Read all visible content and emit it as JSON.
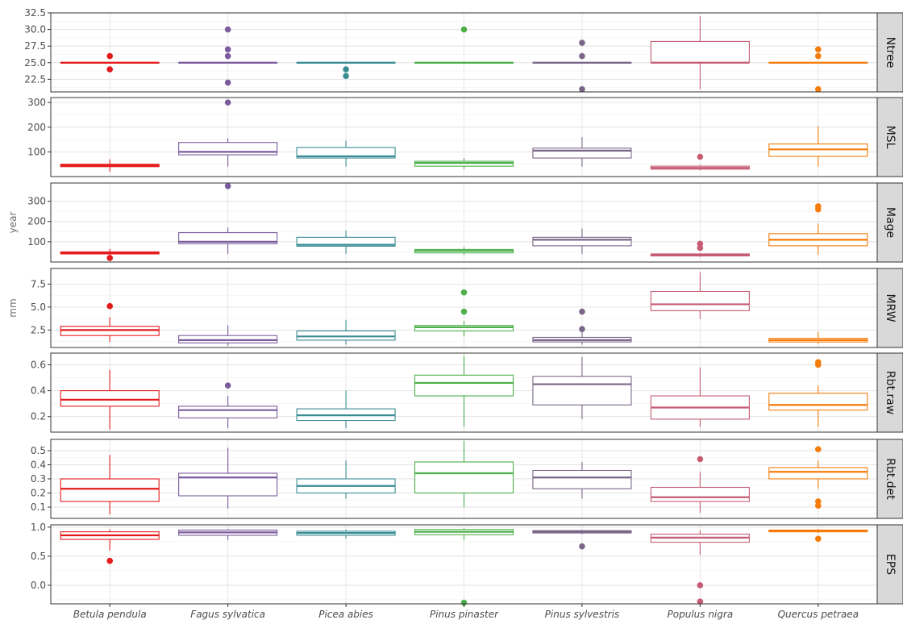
{
  "chart_data": {
    "type": "boxplot",
    "layout": "faceted-rows",
    "grid": true,
    "legend": "none",
    "species": [
      "Betula pendula",
      "Fagus sylvatica",
      "Picea abies",
      "Pinus pinaster",
      "Pinus sylvestris",
      "Populus nigra",
      "Quercus petraea"
    ],
    "colors": [
      "#e41a1c",
      "#7a5c9c",
      "#3a8c94",
      "#4daf4a",
      "#7a6688",
      "#c65b74",
      "#f57c0b"
    ],
    "panels": [
      {
        "name": "Ntree",
        "ylabel": "",
        "ylim": [
          20.6,
          32.5
        ],
        "ticks": [
          22.5,
          25.0,
          27.5,
          30.0,
          32.5
        ],
        "tick_labels": [
          "22.5",
          "25.0",
          "27.5",
          "30.0",
          "32.5"
        ],
        "boxes": [
          {
            "species": "Betula pendula",
            "q1": 25,
            "median": 25,
            "q3": 25,
            "whisker_low": 25,
            "whisker_high": 25,
            "outliers": [
              26,
              24
            ]
          },
          {
            "species": "Fagus sylvatica",
            "q1": 25,
            "median": 25,
            "q3": 25,
            "whisker_low": 25,
            "whisker_high": 25,
            "outliers": [
              30,
              27,
              26,
              22
            ]
          },
          {
            "species": "Picea abies",
            "q1": 25,
            "median": 25,
            "q3": 25,
            "whisker_low": 25,
            "whisker_high": 25,
            "outliers": [
              24,
              23
            ]
          },
          {
            "species": "Pinus pinaster",
            "q1": 25,
            "median": 25,
            "q3": 25,
            "whisker_low": 25,
            "whisker_high": 25,
            "outliers": [
              30
            ]
          },
          {
            "species": "Pinus sylvestris",
            "q1": 25,
            "median": 25,
            "q3": 25,
            "whisker_low": 25,
            "whisker_high": 25,
            "outliers": [
              28,
              26,
              21
            ]
          },
          {
            "species": "Populus nigra",
            "q1": 25,
            "median": 25,
            "q3": 28.2,
            "whisker_low": 21,
            "whisker_high": 32,
            "outliers": []
          },
          {
            "species": "Quercus petraea",
            "q1": 25,
            "median": 25,
            "q3": 25,
            "whisker_low": 25,
            "whisker_high": 25,
            "outliers": [
              27,
              26,
              21
            ]
          }
        ]
      },
      {
        "name": "MSL",
        "ylabel": "",
        "ylim": [
          0,
          320
        ],
        "ticks": [
          100,
          200,
          300
        ],
        "tick_labels": [
          "100",
          "200",
          "300"
        ],
        "boxes": [
          {
            "species": "Betula pendula",
            "q1": 40,
            "median": 45,
            "q3": 50,
            "whisker_low": 20,
            "whisker_high": 70,
            "outliers": []
          },
          {
            "species": "Fagus sylvatica",
            "q1": 88,
            "median": 100,
            "q3": 138,
            "whisker_low": 40,
            "whisker_high": 155,
            "outliers": [
              300
            ]
          },
          {
            "species": "Picea abies",
            "q1": 75,
            "median": 82,
            "q3": 118,
            "whisker_low": 40,
            "whisker_high": 145,
            "outliers": []
          },
          {
            "species": "Pinus pinaster",
            "q1": 42,
            "median": 55,
            "q3": 62,
            "whisker_low": 30,
            "whisker_high": 75,
            "outliers": []
          },
          {
            "species": "Pinus sylvestris",
            "q1": 75,
            "median": 105,
            "q3": 115,
            "whisker_low": 40,
            "whisker_high": 160,
            "outliers": []
          },
          {
            "species": "Populus nigra",
            "q1": 30,
            "median": 35,
            "q3": 42,
            "whisker_low": 25,
            "whisker_high": 48,
            "outliers": [
              80
            ]
          },
          {
            "species": "Quercus petraea",
            "q1": 82,
            "median": 110,
            "q3": 132,
            "whisker_low": 40,
            "whisker_high": 205,
            "outliers": []
          }
        ]
      },
      {
        "name": "Mage",
        "ylabel": "year",
        "ylim": [
          0,
          390
        ],
        "ticks": [
          100,
          200,
          300
        ],
        "tick_labels": [
          "100",
          "200",
          "300"
        ],
        "boxes": [
          {
            "species": "Betula pendula",
            "q1": 40,
            "median": 45,
            "q3": 50,
            "whisker_low": 35,
            "whisker_high": 65,
            "outliers": [
              20
            ]
          },
          {
            "species": "Fagus sylvatica",
            "q1": 90,
            "median": 100,
            "q3": 145,
            "whisker_low": 40,
            "whisker_high": 170,
            "outliers": [
              375
            ]
          },
          {
            "species": "Picea abies",
            "q1": 78,
            "median": 85,
            "q3": 122,
            "whisker_low": 40,
            "whisker_high": 155,
            "outliers": []
          },
          {
            "species": "Pinus pinaster",
            "q1": 45,
            "median": 55,
            "q3": 62,
            "whisker_low": 35,
            "whisker_high": 75,
            "outliers": []
          },
          {
            "species": "Pinus sylvestris",
            "q1": 80,
            "median": 110,
            "q3": 122,
            "whisker_low": 40,
            "whisker_high": 165,
            "outliers": []
          },
          {
            "species": "Populus nigra",
            "q1": 30,
            "median": 35,
            "q3": 40,
            "whisker_low": 25,
            "whisker_high": 45,
            "outliers": [
              90,
              70
            ]
          },
          {
            "species": "Quercus petraea",
            "q1": 80,
            "median": 110,
            "q3": 140,
            "whisker_low": 35,
            "whisker_high": 190,
            "outliers": [
              275,
              260
            ]
          }
        ]
      },
      {
        "name": "MRW",
        "ylabel": "mm",
        "ylim": [
          0.6,
          9.2
        ],
        "ticks": [
          2.5,
          5.0,
          7.5
        ],
        "tick_labels": [
          "2.5",
          "5.0",
          "7.5"
        ],
        "boxes": [
          {
            "species": "Betula pendula",
            "q1": 1.9,
            "median": 2.5,
            "q3": 2.9,
            "whisker_low": 1.2,
            "whisker_high": 3.9,
            "outliers": [
              5.1
            ]
          },
          {
            "species": "Fagus sylvatica",
            "q1": 1.1,
            "median": 1.4,
            "q3": 1.9,
            "whisker_low": 0.8,
            "whisker_high": 3.0,
            "outliers": []
          },
          {
            "species": "Picea abies",
            "q1": 1.4,
            "median": 1.8,
            "q3": 2.4,
            "whisker_low": 0.9,
            "whisker_high": 3.6,
            "outliers": []
          },
          {
            "species": "Pinus pinaster",
            "q1": 2.4,
            "median": 2.8,
            "q3": 3.0,
            "whisker_low": 1.8,
            "whisker_high": 3.5,
            "outliers": [
              6.6,
              4.5
            ]
          },
          {
            "species": "Pinus sylvestris",
            "q1": 1.2,
            "median": 1.4,
            "q3": 1.7,
            "whisker_low": 0.9,
            "whisker_high": 2.3,
            "outliers": [
              4.5,
              2.6
            ]
          },
          {
            "species": "Populus nigra",
            "q1": 4.6,
            "median": 5.3,
            "q3": 6.7,
            "whisker_low": 3.7,
            "whisker_high": 8.8,
            "outliers": []
          },
          {
            "species": "Quercus petraea",
            "q1": 1.2,
            "median": 1.4,
            "q3": 1.6,
            "whisker_low": 1.0,
            "whisker_high": 2.3,
            "outliers": []
          }
        ]
      },
      {
        "name": "Rbt.raw",
        "ylabel": "",
        "ylim": [
          0.08,
          0.69
        ],
        "ticks": [
          0.2,
          0.4,
          0.6
        ],
        "tick_labels": [
          "0.2",
          "0.4",
          "0.6"
        ],
        "boxes": [
          {
            "species": "Betula pendula",
            "q1": 0.28,
            "median": 0.33,
            "q3": 0.4,
            "whisker_low": 0.1,
            "whisker_high": 0.56,
            "outliers": []
          },
          {
            "species": "Fagus sylvatica",
            "q1": 0.19,
            "median": 0.25,
            "q3": 0.28,
            "whisker_low": 0.11,
            "whisker_high": 0.36,
            "outliers": [
              0.44
            ]
          },
          {
            "species": "Picea abies",
            "q1": 0.17,
            "median": 0.21,
            "q3": 0.26,
            "whisker_low": 0.11,
            "whisker_high": 0.4,
            "outliers": []
          },
          {
            "species": "Pinus pinaster",
            "q1": 0.36,
            "median": 0.46,
            "q3": 0.52,
            "whisker_low": 0.12,
            "whisker_high": 0.67,
            "outliers": []
          },
          {
            "species": "Pinus sylvestris",
            "q1": 0.29,
            "median": 0.45,
            "q3": 0.51,
            "whisker_low": 0.18,
            "whisker_high": 0.66,
            "outliers": []
          },
          {
            "species": "Populus nigra",
            "q1": 0.18,
            "median": 0.27,
            "q3": 0.36,
            "whisker_low": 0.12,
            "whisker_high": 0.58,
            "outliers": []
          },
          {
            "species": "Quercus petraea",
            "q1": 0.25,
            "median": 0.29,
            "q3": 0.38,
            "whisker_low": 0.12,
            "whisker_high": 0.44,
            "outliers": [
              0.62,
              0.6
            ]
          }
        ]
      },
      {
        "name": "Rbt.det",
        "ylabel": "",
        "ylim": [
          0.02,
          0.58
        ],
        "ticks": [
          0.1,
          0.2,
          0.3,
          0.4,
          0.5
        ],
        "tick_labels": [
          "0.1",
          "0.2",
          "0.3",
          "0.4",
          "0.5"
        ],
        "boxes": [
          {
            "species": "Betula pendula",
            "q1": 0.14,
            "median": 0.23,
            "q3": 0.3,
            "whisker_low": 0.05,
            "whisker_high": 0.47,
            "outliers": []
          },
          {
            "species": "Fagus sylvatica",
            "q1": 0.18,
            "median": 0.31,
            "q3": 0.34,
            "whisker_low": 0.09,
            "whisker_high": 0.52,
            "outliers": []
          },
          {
            "species": "Picea abies",
            "q1": 0.2,
            "median": 0.25,
            "q3": 0.3,
            "whisker_low": 0.16,
            "whisker_high": 0.43,
            "outliers": []
          },
          {
            "species": "Pinus pinaster",
            "q1": 0.2,
            "median": 0.34,
            "q3": 0.42,
            "whisker_low": 0.1,
            "whisker_high": 0.57,
            "outliers": []
          },
          {
            "species": "Pinus sylvestris",
            "q1": 0.23,
            "median": 0.31,
            "q3": 0.36,
            "whisker_low": 0.16,
            "whisker_high": 0.42,
            "outliers": []
          },
          {
            "species": "Populus nigra",
            "q1": 0.14,
            "median": 0.17,
            "q3": 0.24,
            "whisker_low": 0.06,
            "whisker_high": 0.35,
            "outliers": [
              0.44
            ]
          },
          {
            "species": "Quercus petraea",
            "q1": 0.3,
            "median": 0.35,
            "q3": 0.38,
            "whisker_low": 0.23,
            "whisker_high": 0.43,
            "outliers": [
              0.51,
              0.14,
              0.11
            ]
          }
        ]
      },
      {
        "name": "EPS",
        "ylabel": "",
        "ylim": [
          -0.32,
          1.04
        ],
        "ticks": [
          0.0,
          0.5,
          1.0
        ],
        "tick_labels": [
          "0.0",
          "0.5",
          "1.0"
        ],
        "boxes": [
          {
            "species": "Betula pendula",
            "q1": 0.79,
            "median": 0.86,
            "q3": 0.92,
            "whisker_low": 0.6,
            "whisker_high": 0.96,
            "outliers": [
              0.42
            ]
          },
          {
            "species": "Fagus sylvatica",
            "q1": 0.86,
            "median": 0.91,
            "q3": 0.95,
            "whisker_low": 0.78,
            "whisker_high": 0.97,
            "outliers": []
          },
          {
            "species": "Picea abies",
            "q1": 0.86,
            "median": 0.9,
            "q3": 0.93,
            "whisker_low": 0.8,
            "whisker_high": 0.96,
            "outliers": []
          },
          {
            "species": "Pinus pinaster",
            "q1": 0.87,
            "median": 0.92,
            "q3": 0.96,
            "whisker_low": 0.78,
            "whisker_high": 0.98,
            "outliers": [
              -0.3
            ]
          },
          {
            "species": "Pinus sylvestris",
            "q1": 0.9,
            "median": 0.92,
            "q3": 0.94,
            "whisker_low": 0.88,
            "whisker_high": 0.95,
            "outliers": [
              0.67
            ]
          },
          {
            "species": "Populus nigra",
            "q1": 0.74,
            "median": 0.82,
            "q3": 0.88,
            "whisker_low": 0.52,
            "whisker_high": 0.95,
            "outliers": [
              0.0,
              -0.28
            ]
          },
          {
            "species": "Quercus petraea",
            "q1": 0.92,
            "median": 0.93,
            "q3": 0.95,
            "whisker_low": 0.9,
            "whisker_high": 0.97,
            "outliers": [
              0.8
            ]
          }
        ]
      }
    ]
  }
}
